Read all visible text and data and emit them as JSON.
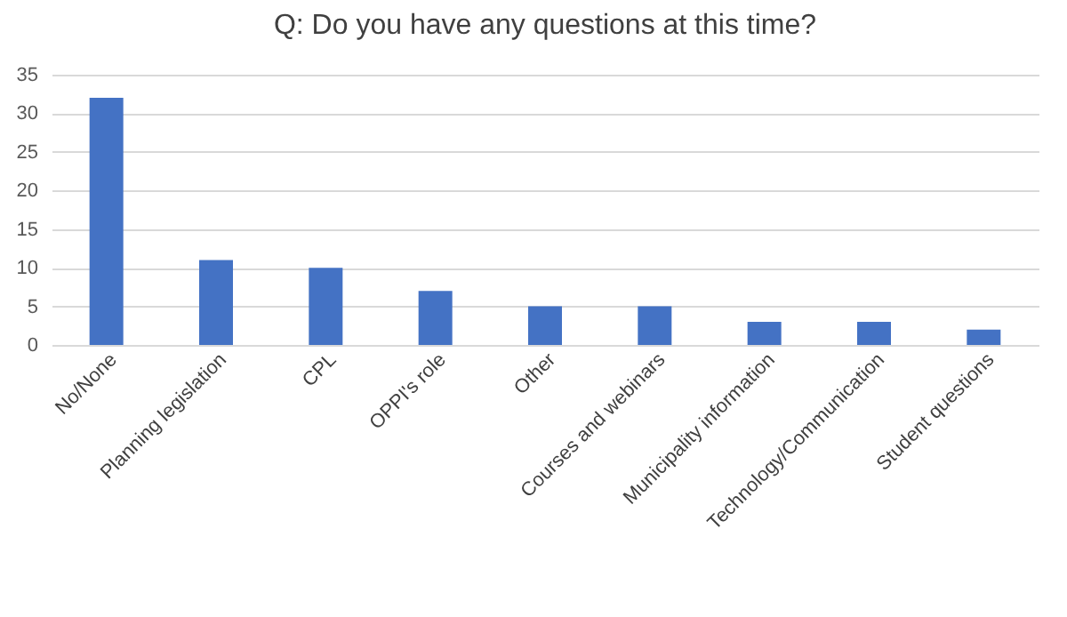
{
  "chart_data": {
    "type": "bar",
    "title": "Q: Do you have any questions at this time?",
    "categories": [
      "No/None",
      "Planning legislation",
      "CPL",
      "OPPI's role",
      "Other",
      "Courses and webinars",
      "Municipality information",
      "Technology/Communication",
      "Student questions"
    ],
    "values": [
      32,
      11,
      10,
      7,
      5,
      5,
      3,
      3,
      2
    ],
    "color": "#4472c4",
    "ylim": [
      0,
      35
    ],
    "yticks": [
      0,
      5,
      10,
      15,
      20,
      25,
      30,
      35
    ],
    "grid": "y"
  }
}
